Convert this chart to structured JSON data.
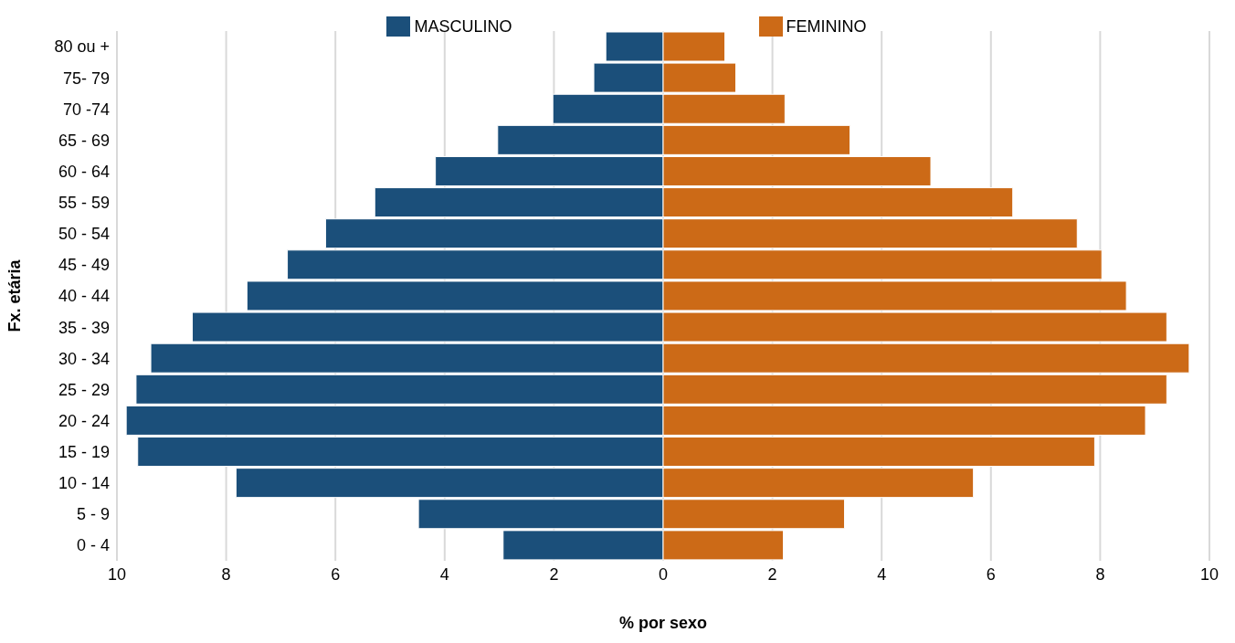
{
  "chart_data": {
    "type": "bar",
    "orientation": "horizontal",
    "stacked": true,
    "xlabel": "% por sexo",
    "ylabel": "Fx. etária",
    "categories": [
      "80 ou +",
      "75- 79",
      "70 -74",
      "65 - 69",
      "60 - 64",
      "55 - 59",
      "50 - 54",
      "45 - 49",
      "40 - 44",
      "35 - 39",
      "30 - 34",
      "25 - 29",
      "20 - 24",
      "15 - 19",
      "10 - 14",
      "5 - 9",
      "0 - 4"
    ],
    "series": [
      {
        "name": "MASCULINO",
        "color": "#1b4f7a",
        "values": [
          -1.05,
          -1.27,
          -2.02,
          -3.03,
          -4.17,
          -5.28,
          -6.18,
          -6.88,
          -7.62,
          -8.62,
          -9.38,
          -9.65,
          -9.83,
          -9.62,
          -7.82,
          -4.48,
          -2.93
        ]
      },
      {
        "name": "FEMININO",
        "color": "#cc6a17",
        "values": [
          1.13,
          1.33,
          2.23,
          3.42,
          4.9,
          6.4,
          7.58,
          8.03,
          8.48,
          9.22,
          9.63,
          9.22,
          8.83,
          7.9,
          5.68,
          3.32,
          2.2
        ]
      }
    ],
    "xlim": [
      -10,
      10
    ],
    "xticks": [
      {
        "value": -10,
        "label": "10"
      },
      {
        "value": -8,
        "label": "8"
      },
      {
        "value": -6,
        "label": "6"
      },
      {
        "value": -4,
        "label": "4"
      },
      {
        "value": -2,
        "label": "2"
      },
      0,
      2,
      4,
      6,
      8,
      10
    ],
    "grid": "x",
    "legend": "top"
  }
}
